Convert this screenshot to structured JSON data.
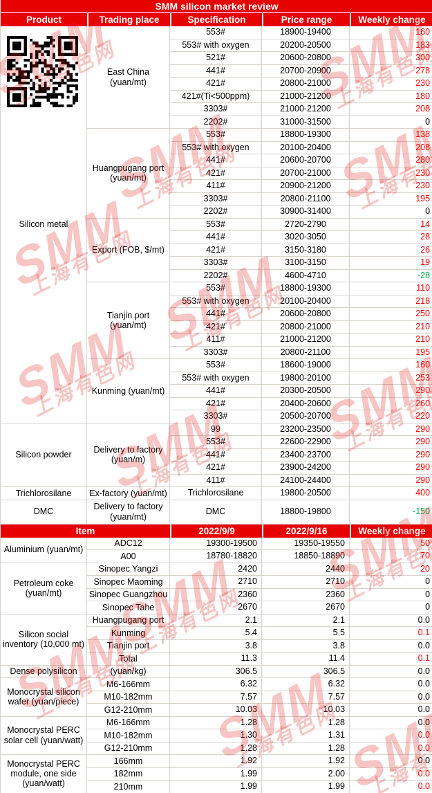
{
  "colors": {
    "header_bg": "#E60000",
    "header_text": "#FFFFFF",
    "red": "#FF0000",
    "green": "#00B050",
    "black": "#000000",
    "border": "#D8D2CC",
    "watermark": "#E2231A"
  },
  "watermark": {
    "smm": "SMM",
    "cn": "上海有色网"
  },
  "chart_data": [
    {
      "type": "table",
      "title": "SMM silicon market review",
      "columns": [
        "Product",
        "Trading place",
        "Specification",
        "Price range",
        "Weekly change"
      ],
      "groups": [
        {
          "product": "Silicon metal",
          "qr": true,
          "places": [
            {
              "place": "East China (yuan/mt)",
              "rows": [
                {
                  "spec": "553#",
                  "price": "18900-19400",
                  "change": "160",
                  "change_color": "red"
                },
                {
                  "spec": "553# with oxygen",
                  "price": "20200-20500",
                  "change": "183",
                  "change_color": "red"
                },
                {
                  "spec": "521#",
                  "price": "20600-20800",
                  "change": "300",
                  "change_color": "red"
                },
                {
                  "spec": "441#",
                  "price": "20700-20900",
                  "change": "278",
                  "change_color": "red"
                },
                {
                  "spec": "421#",
                  "price": "20800-21000",
                  "change": "230",
                  "change_color": "red"
                },
                {
                  "spec": "421#(Ti<500ppm)",
                  "price": "21000-21200",
                  "change": "180",
                  "change_color": "red"
                },
                {
                  "spec": "3303#",
                  "price": "21000-21200",
                  "change": "208",
                  "change_color": "red"
                },
                {
                  "spec": "2202#",
                  "price": "31000-31500",
                  "change": "0",
                  "change_color": "black"
                }
              ]
            },
            {
              "place": "Huangpugang port (yuan/mt)",
              "rows": [
                {
                  "spec": "553#",
                  "price": "18800-19300",
                  "change": "138",
                  "change_color": "red"
                },
                {
                  "spec": "553# with oxygen",
                  "price": "20100-20400",
                  "change": "208",
                  "change_color": "red"
                },
                {
                  "spec": "441#",
                  "price": "20600-20700",
                  "change": "280",
                  "change_color": "red"
                },
                {
                  "spec": "421#",
                  "price": "20700-21000",
                  "change": "230",
                  "change_color": "red"
                },
                {
                  "spec": "411#",
                  "price": "20900-21200",
                  "change": "230",
                  "change_color": "red"
                },
                {
                  "spec": "3303#",
                  "price": "20800-21100",
                  "change": "195",
                  "change_color": "red"
                },
                {
                  "spec": "2202#",
                  "price": "30900-31400",
                  "change": "0",
                  "change_color": "black"
                }
              ]
            },
            {
              "place": "Export (FOB, $/mt)",
              "rows": [
                {
                  "spec": "553#",
                  "price": "2720-2790",
                  "change": "14",
                  "change_color": "red"
                },
                {
                  "spec": "441#",
                  "price": "3020-3050",
                  "change": "28",
                  "change_color": "red"
                },
                {
                  "spec": "421#",
                  "price": "3150-3180",
                  "change": "26",
                  "change_color": "red"
                },
                {
                  "spec": "3303#",
                  "price": "3100-3150",
                  "change": "19",
                  "change_color": "red"
                },
                {
                  "spec": "2202#",
                  "price": "4600-4710",
                  "change": "-28",
                  "change_color": "green"
                }
              ]
            },
            {
              "place": "Tianjin port (yuan/mt)",
              "rows": [
                {
                  "spec": "553#",
                  "price": "18800-19300",
                  "change": "110",
                  "change_color": "red"
                },
                {
                  "spec": "553# with oxygen",
                  "price": "20100-20400",
                  "change": "218",
                  "change_color": "red"
                },
                {
                  "spec": "441#",
                  "price": "20600-20800",
                  "change": "250",
                  "change_color": "red"
                },
                {
                  "spec": "421#",
                  "price": "20800-21000",
                  "change": "210",
                  "change_color": "red"
                },
                {
                  "spec": "411#",
                  "price": "21000-21200",
                  "change": "210",
                  "change_color": "red"
                },
                {
                  "spec": "3303#",
                  "price": "20800-21100",
                  "change": "195",
                  "change_color": "red"
                }
              ]
            },
            {
              "place": "Kunming (yuan/mt)",
              "rows": [
                {
                  "spec": "553#",
                  "price": "18600-19000",
                  "change": "160",
                  "change_color": "red"
                },
                {
                  "spec": "553# with oxygen",
                  "price": "19800-20100",
                  "change": "253",
                  "change_color": "red"
                },
                {
                  "spec": "441#",
                  "price": "20300-20500",
                  "change": "290",
                  "change_color": "red"
                },
                {
                  "spec": "421#",
                  "price": "20400-20600",
                  "change": "260",
                  "change_color": "red"
                },
                {
                  "spec": "3303#",
                  "price": "20500-20700",
                  "change": "220",
                  "change_color": "red"
                }
              ]
            }
          ]
        },
        {
          "product": "Silicon powder",
          "places": [
            {
              "place": "Delivery to factory (yuan/m)",
              "rows": [
                {
                  "spec": "99",
                  "price": "23200-23500",
                  "change": "290",
                  "change_color": "red"
                },
                {
                  "spec": "553#",
                  "price": "22600-22900",
                  "change": "290",
                  "change_color": "red"
                },
                {
                  "spec": "441#",
                  "price": "23400-23700",
                  "change": "290",
                  "change_color": "red"
                },
                {
                  "spec": "421#",
                  "price": "23900-24200",
                  "change": "290",
                  "change_color": "red"
                },
                {
                  "spec": "411#",
                  "price": "24100-24400",
                  "change": "290",
                  "change_color": "red"
                }
              ]
            }
          ]
        },
        {
          "product": "Trichlorosilane",
          "places": [
            {
              "place": "Ex-factory (yuan/mt)",
              "rows": [
                {
                  "spec": "Trichlorosilane",
                  "price": "19800-20500",
                  "change": "400",
                  "change_color": "red"
                }
              ]
            }
          ]
        },
        {
          "product": "DMC",
          "places": [
            {
              "place": "Delivery to factory (yuan/mt)",
              "rows": [
                {
                  "spec": "DMC",
                  "price": "18800-19800",
                  "change": "-150",
                  "change_color": "green",
                  "tall": true
                }
              ]
            }
          ]
        }
      ]
    },
    {
      "type": "table",
      "columns": [
        "Item",
        "2022/9/9",
        "2022/9/16",
        "Weekly change"
      ],
      "groups": [
        {
          "name": "Aluminium (yuan/mt)",
          "rows": [
            {
              "sub": "ADC12",
              "v1": "19300-19500",
              "v2": "19350-19550",
              "change": "50",
              "change_color": "red"
            },
            {
              "sub": "A00",
              "v1": "18780-18820",
              "v2": "18850-18890",
              "change": "70",
              "change_color": "red"
            }
          ]
        },
        {
          "name": "Petroleum coke (yuan/mt)",
          "rows": [
            {
              "sub": "Sinopec Yangzi",
              "v1": "2420",
              "v2": "2440",
              "change": "20",
              "change_color": "red"
            },
            {
              "sub": "Sinopec Maoming",
              "v1": "2710",
              "v2": "2710",
              "change": "0",
              "change_color": "black"
            },
            {
              "sub": "Sinopec Guangzhou",
              "v1": "2360",
              "v2": "2360",
              "change": "0",
              "change_color": "black"
            },
            {
              "sub": "Sinopec Tahe",
              "v1": "2670",
              "v2": "2670",
              "change": "0",
              "change_color": "black"
            }
          ]
        },
        {
          "name": "Silicon social inventory (10,000 mt)",
          "rows": [
            {
              "sub": "Huangpugang port",
              "v1": "2.1",
              "v2": "2.1",
              "change": "0.0",
              "change_color": "black"
            },
            {
              "sub": "Kunming",
              "v1": "5.4",
              "v2": "5.5",
              "change": "0.1",
              "change_color": "red"
            },
            {
              "sub": "Tianjin port",
              "v1": "3.8",
              "v2": "3.8",
              "change": "0.0",
              "change_color": "black"
            },
            {
              "sub": "Total",
              "v1": "11.3",
              "v2": "11.4",
              "change": "0.1",
              "change_color": "red"
            }
          ]
        },
        {
          "name": "Dense polysilicon",
          "rows": [
            {
              "sub": "(yuan/kg)",
              "v1": "306.5",
              "v2": "306.5",
              "change": "0.0",
              "change_color": "black"
            }
          ]
        },
        {
          "name": "Monocrystal silicon wafer (yuan/piece)",
          "rows": [
            {
              "sub": "M6-166mm",
              "v1": "6.32",
              "v2": "6.32",
              "change": "0.0",
              "change_color": "black"
            },
            {
              "sub": "M10-182mm",
              "v1": "7.57",
              "v2": "7.57",
              "change": "0.0",
              "change_color": "black"
            },
            {
              "sub": "G12-210mm",
              "v1": "10.03",
              "v2": "10.03",
              "change": "0.0",
              "change_color": "black"
            }
          ]
        },
        {
          "name": "Monocrystal PERC solar cell (yuan/watt)",
          "rows": [
            {
              "sub": "M6-166mm",
              "v1": "1.28",
              "v2": "1.28",
              "change": "0.0",
              "change_color": "black"
            },
            {
              "sub": "M10-182mm",
              "v1": "1.30",
              "v2": "1.31",
              "change": "0.0",
              "change_color": "red"
            },
            {
              "sub": "G12-210mm",
              "v1": "1.28",
              "v2": "1.28",
              "change": "0.0",
              "change_color": "red"
            }
          ]
        },
        {
          "name": "Monocrystal PERC module, one side (yuan/watt)",
          "rows": [
            {
              "sub": "166mm",
              "v1": "1.92",
              "v2": "1.92",
              "change": "0.0",
              "change_color": "black"
            },
            {
              "sub": "182mm",
              "v1": "1.99",
              "v2": "2.00",
              "change": "0.0",
              "change_color": "red"
            },
            {
              "sub": "210mm",
              "v1": "1.99",
              "v2": "1.99",
              "change": "0.0",
              "change_color": "red"
            }
          ]
        }
      ]
    }
  ]
}
